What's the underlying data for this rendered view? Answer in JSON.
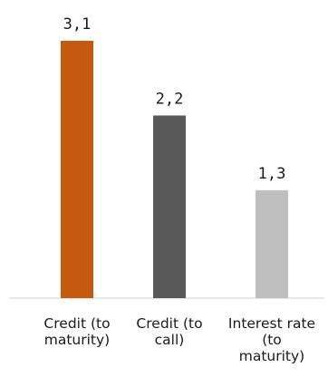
{
  "chart_data": {
    "type": "bar",
    "title": "",
    "xlabel": "",
    "ylabel": "",
    "categories": [
      [
        "Credit (to",
        "maturity)"
      ],
      [
        "Credit (to",
        "call)"
      ],
      [
        "Interest rate",
        "(to",
        "maturity)"
      ]
    ],
    "values": [
      3.1,
      2.2,
      1.3
    ],
    "value_labels": [
      "3,1",
      "2,2",
      "1,3"
    ],
    "colors": [
      "#c55a11",
      "#595959",
      "#bfbfbf"
    ],
    "ylim": [
      0,
      3.1
    ],
    "grid": false,
    "legend": "none"
  }
}
